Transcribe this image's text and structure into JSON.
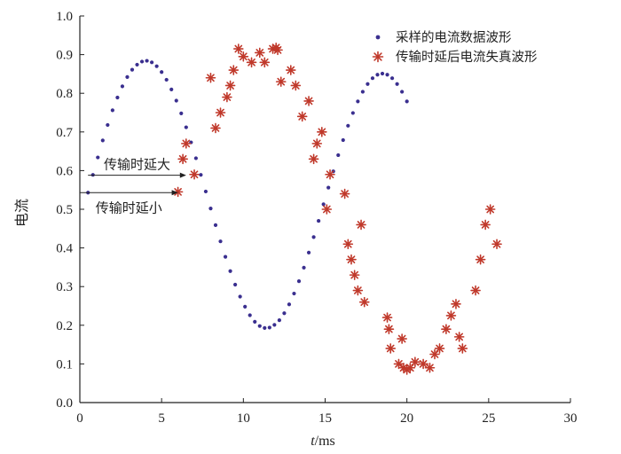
{
  "chart_data": {
    "type": "scatter",
    "xlabel_italic": "t",
    "xlabel_rest": "/ms",
    "ylabel": "电流",
    "xlim": [
      0,
      30
    ],
    "ylim": [
      0,
      1.0
    ],
    "xticks": [
      "0",
      "5",
      "10",
      "15",
      "20",
      "25",
      "30"
    ],
    "yticks": [
      "0.0",
      "0.1",
      "0.2",
      "0.3",
      "0.4",
      "0.5",
      "0.6",
      "0.7",
      "0.8",
      "0.9",
      "1.0"
    ],
    "grid": false,
    "legend_position": "top-right",
    "series": [
      {
        "name": "采样的电流数据波形",
        "marker": "dot",
        "color": "#3a2f8f",
        "x": [
          0.5,
          0.8,
          1.1,
          1.4,
          1.7,
          2.0,
          2.3,
          2.6,
          2.9,
          3.2,
          3.5,
          3.8,
          4.1,
          4.4,
          4.7,
          5.0,
          5.3,
          5.6,
          5.9,
          6.2,
          6.5,
          6.8,
          7.1,
          7.4,
          7.7,
          8.0,
          8.3,
          8.6,
          8.9,
          9.2,
          9.5,
          9.8,
          10.1,
          10.4,
          10.7,
          11.0,
          11.3,
          11.6,
          11.9,
          12.2,
          12.5,
          12.8,
          13.1,
          13.4,
          13.7,
          14.0,
          14.3,
          14.6,
          14.9,
          15.2,
          15.5,
          15.8,
          16.1,
          16.4,
          16.7,
          17.0,
          17.3,
          17.6,
          17.9,
          18.2,
          18.5,
          18.8,
          19.1,
          19.4,
          19.7,
          20.0
        ],
        "y": [
          0.543,
          0.589,
          0.634,
          0.678,
          0.718,
          0.756,
          0.789,
          0.818,
          0.842,
          0.861,
          0.874,
          0.882,
          0.884,
          0.88,
          0.87,
          0.855,
          0.835,
          0.81,
          0.781,
          0.748,
          0.712,
          0.673,
          0.632,
          0.589,
          0.546,
          0.502,
          0.459,
          0.417,
          0.377,
          0.34,
          0.305,
          0.274,
          0.248,
          0.226,
          0.209,
          0.198,
          0.193,
          0.194,
          0.201,
          0.213,
          0.231,
          0.254,
          0.282,
          0.314,
          0.349,
          0.388,
          0.428,
          0.47,
          0.513,
          0.556,
          0.598,
          0.64,
          0.679,
          0.716,
          0.749,
          0.779,
          0.804,
          0.824,
          0.839,
          0.848,
          0.851,
          0.848,
          0.839,
          0.824,
          0.804,
          0.779
        ]
      },
      {
        "name": "传输时延后电流失真波形",
        "marker": "asterisk",
        "color": "#c0392b",
        "x": [
          6.0,
          6.3,
          6.5,
          7.0,
          8.0,
          8.3,
          8.6,
          9.0,
          9.2,
          9.4,
          9.7,
          10.0,
          10.5,
          11.0,
          11.3,
          11.8,
          12.0,
          12.1,
          12.3,
          12.9,
          13.2,
          13.6,
          14.0,
          14.3,
          14.5,
          14.8,
          15.1,
          15.3,
          16.2,
          16.4,
          16.6,
          16.8,
          17.0,
          17.2,
          17.4,
          18.8,
          18.9,
          19.0,
          19.5,
          19.7,
          19.8,
          20.0,
          20.2,
          20.5,
          21.0,
          21.4,
          21.7,
          22.0,
          22.4,
          22.7,
          23.0,
          23.2,
          23.4,
          24.2,
          24.5,
          24.8,
          25.1,
          25.5
        ],
        "y": [
          0.545,
          0.63,
          0.67,
          0.59,
          0.84,
          0.71,
          0.75,
          0.79,
          0.82,
          0.86,
          0.915,
          0.895,
          0.88,
          0.905,
          0.88,
          0.915,
          0.918,
          0.912,
          0.83,
          0.86,
          0.82,
          0.74,
          0.78,
          0.63,
          0.67,
          0.7,
          0.5,
          0.59,
          0.54,
          0.41,
          0.37,
          0.33,
          0.29,
          0.46,
          0.26,
          0.22,
          0.19,
          0.14,
          0.1,
          0.165,
          0.09,
          0.085,
          0.09,
          0.105,
          0.1,
          0.09,
          0.125,
          0.14,
          0.19,
          0.225,
          0.255,
          0.17,
          0.14,
          0.29,
          0.37,
          0.46,
          0.5,
          0.41
        ]
      }
    ],
    "annotations": [
      {
        "text": "传输时延大",
        "y": 0.588,
        "x_from": 0.5,
        "x_to": 6.5
      },
      {
        "text": "传输时延小",
        "y": 0.543,
        "x_from": 0.0,
        "x_to": 6.0
      }
    ]
  }
}
